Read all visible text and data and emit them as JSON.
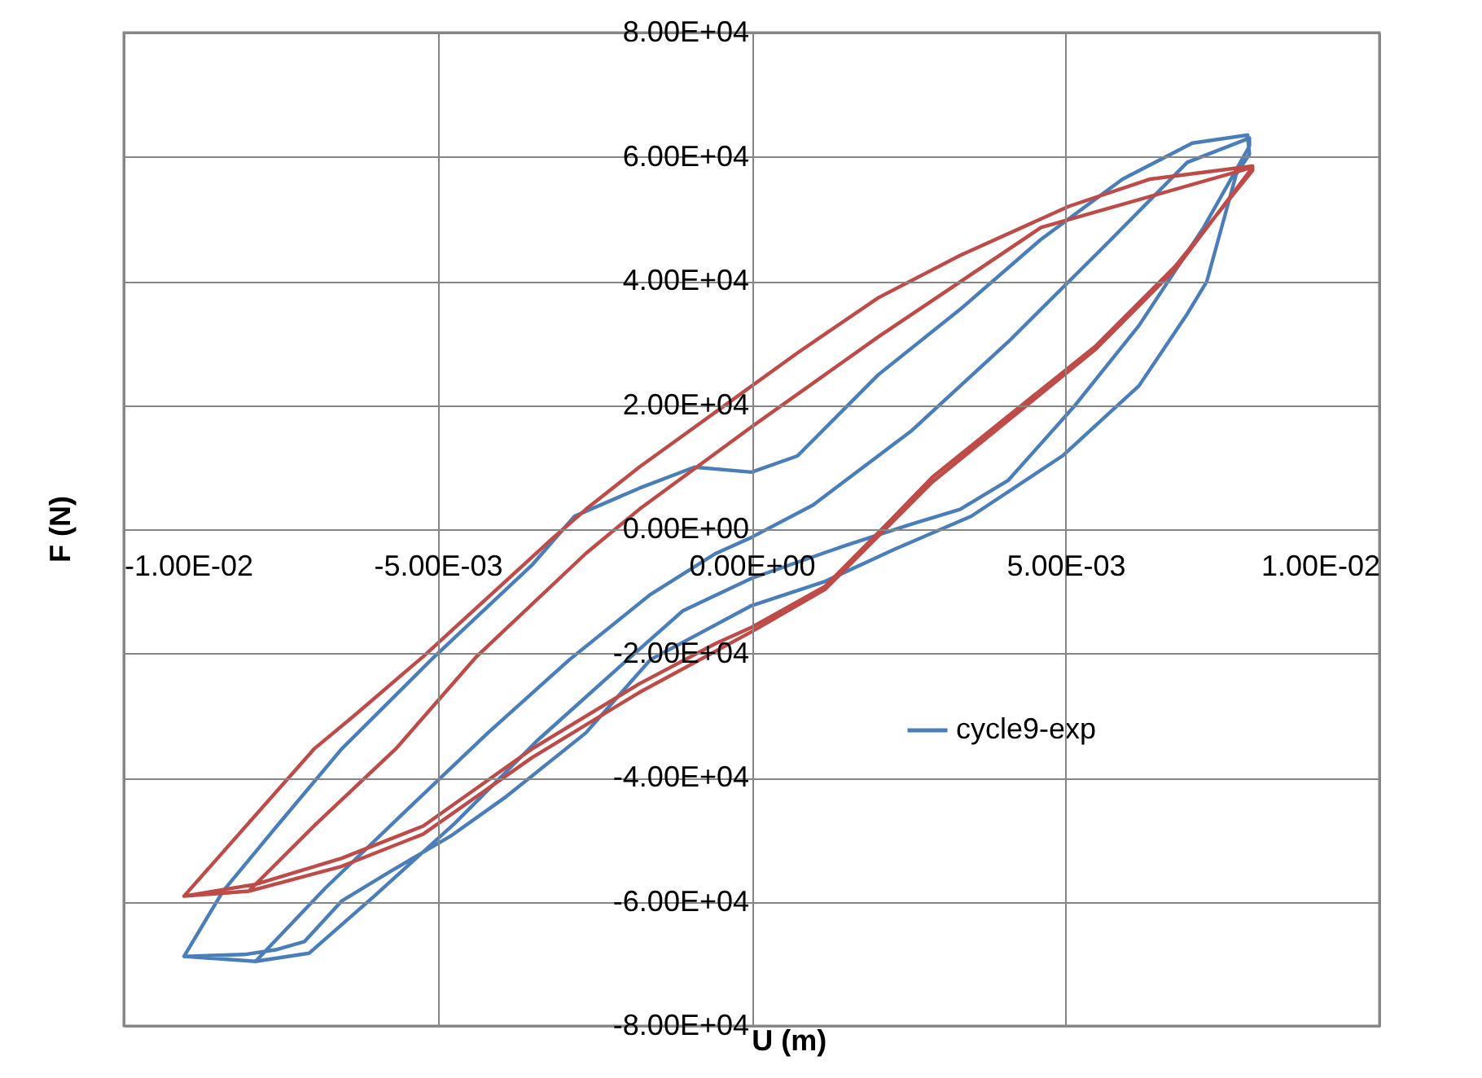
{
  "chart_data": {
    "type": "line",
    "xlabel": "U (m)",
    "ylabel": "F (N)",
    "xlim": [
      -0.01,
      0.01
    ],
    "xticks": [
      {
        "value": -0.01,
        "label": "-1.00E-02"
      },
      {
        "value": -0.005,
        "label": "-5.00E-03"
      },
      {
        "value": 0,
        "label": "0.00E+00"
      },
      {
        "value": 0.005,
        "label": "5.00E-03"
      },
      {
        "value": 0.01,
        "label": "1.00E-02"
      }
    ],
    "ylim": [
      -80000,
      80000
    ],
    "yticks": [
      {
        "value": -80000,
        "label": "-8.00E+04"
      },
      {
        "value": -60000,
        "label": "-6.00E+04"
      },
      {
        "value": -40000,
        "label": "-4.00E+04"
      },
      {
        "value": -20000,
        "label": "-2.00E+04"
      },
      {
        "value": 0,
        "label": "0.00E+00"
      },
      {
        "value": 20000,
        "label": "2.00E+04"
      },
      {
        "value": 40000,
        "label": "4.00E+04"
      },
      {
        "value": 60000,
        "label": "6.00E+04"
      },
      {
        "value": 80000,
        "label": "8.00E+04"
      }
    ],
    "grid": true,
    "legend": "right",
    "line_style": "solid",
    "series": [
      {
        "name": "cycle9-exp",
        "color": "#4a7ebb",
        "x": [
          -0.00904,
          -0.00842,
          -0.00756,
          -0.00653,
          -0.00505,
          -0.0035,
          -0.00282,
          -0.00179,
          -0.00091,
          0,
          0.00073,
          0.00202,
          0.00332,
          0.00461,
          0.00591,
          0.00702,
          0.0079,
          0.00793,
          0.00772,
          0.00725,
          0.00694,
          0.00617,
          0.00495,
          0.0035,
          0.00228,
          0.00117,
          0,
          -0.00161,
          -0.00264,
          -0.00394,
          -0.00479,
          -0.00575,
          -0.00653,
          -0.00712,
          -0.00756,
          -0.00808,
          -0.00904,
          -0.0079,
          -0.00679,
          -0.00549,
          -0.0042,
          -0.0029,
          -0.00161,
          -0.00057,
          0,
          0.00098,
          0.00254,
          0.00409,
          0.00565,
          0.00694,
          0.00793,
          0.00793,
          0.0072,
          0.00617,
          0.00513,
          0.00409,
          0.00332,
          0.00254,
          0.0015,
          0,
          -0.00109,
          -0.00212,
          -0.00342,
          -0.00472,
          -0.00601,
          -0.00705,
          -0.0079
        ],
        "values": [
          -68800,
          -58300,
          -47800,
          -35400,
          -20500,
          -5800,
          2100,
          6600,
          10000,
          9200,
          11800,
          24900,
          35400,
          46700,
          56400,
          62200,
          63500,
          60400,
          57200,
          39900,
          34700,
          23100,
          11800,
          2100,
          -3200,
          -8400,
          -12300,
          -21000,
          -32800,
          -43300,
          -49400,
          -55100,
          -59900,
          -66400,
          -67700,
          -68500,
          -68800,
          -69600,
          -57800,
          -45200,
          -32800,
          -21000,
          -10500,
          -3900,
          -1300,
          3900,
          15800,
          30200,
          45900,
          59100,
          63000,
          61700,
          48600,
          32800,
          19700,
          7900,
          3200,
          800,
          -2600,
          -7900,
          -13100,
          -22300,
          -34100,
          -47300,
          -59100,
          -68300,
          -69600
        ]
      },
      {
        "color": "#be4b48",
        "x": [
          -0.00904,
          -0.00697,
          -0.00635,
          -0.00523,
          -0.00324,
          -0.00264,
          -0.00179,
          -0.00057,
          0.00073,
          0.00202,
          0.00332,
          0.00505,
          0.00635,
          0.00798,
          0.00798,
          0.00676,
          0.00547,
          0.00417,
          0.00288,
          0.0022,
          0.00117,
          0,
          -0.00057,
          -0.00179,
          -0.0035,
          -0.00523,
          -0.00653,
          -0.0079,
          -0.00904,
          -0.00801,
          -0.00697,
          -0.00567,
          -0.00438,
          -0.00264,
          -0.00179,
          0,
          0.00202,
          0.00461,
          0.00798,
          0.00676,
          0.00547,
          0.00288,
          0.00117,
          0,
          -0.00179,
          -0.0035,
          -0.00523,
          -0.00653,
          -0.00801
        ],
        "values": [
          -59100,
          -35400,
          -30200,
          -20500,
          -2100,
          3200,
          10000,
          18900,
          28400,
          37300,
          44100,
          52000,
          56400,
          58500,
          57800,
          42500,
          29400,
          18900,
          8400,
          1300,
          -9200,
          -15800,
          -18400,
          -24900,
          -35400,
          -47800,
          -53000,
          -57200,
          -59100,
          -58300,
          -47800,
          -35400,
          -20500,
          -3900,
          3200,
          16500,
          31000,
          48600,
          58300,
          42000,
          28900,
          7600,
          -9700,
          -16500,
          -26300,
          -36800,
          -49100,
          -54300,
          -58300
        ]
      }
    ]
  }
}
